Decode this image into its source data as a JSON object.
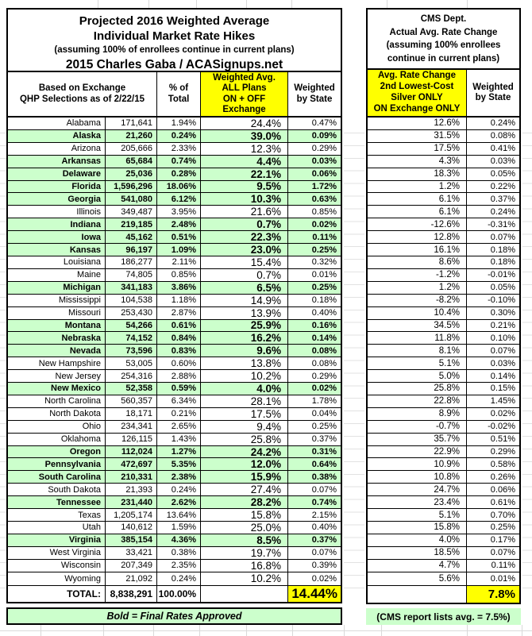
{
  "ui": {
    "left_table": {
      "title_lines": [
        "Projected 2016 Weighted Average",
        "Individual Market Rate Hikes",
        "(assuming 100% of enrollees continue in current plans)",
        "2015 Charles Gaba / ACASignups.net"
      ],
      "header": {
        "based_on": "Based on Exchange\nQHP Selections as of 2/22/15",
        "pct_total": "% of\nTotal",
        "weighted_avg": "Weighted Avg.\nALL Plans\nON + OFF\nExchange",
        "weighted_by_state": "Weighted\nby State"
      },
      "total_row": {
        "label": "TOTAL:",
        "enrollment": "8,838,291",
        "pct_total": "100.00%",
        "weighted_avg": "",
        "weighted_by_state": "14.44%"
      },
      "footer_note": "Bold = Final Rates Approved"
    },
    "right_table": {
      "title_lines_text": "CMS Dept.\nActual Avg. Rate Change\n(assuming 100% enrollees\ncontinue in current plans)",
      "header": {
        "rate_change": "Avg. Rate Change\n2nd Lowest-Cost\nSilver ONLY\nON Exchange ONLY",
        "weighted_by_state": "Weighted\nby State"
      },
      "total_row": {
        "rate_change": "",
        "weighted_by_state": "7.8%"
      },
      "footer_note": "(CMS report lists avg. = 7.5%)"
    },
    "colors": {
      "highlight_green": "#ccffcc",
      "highlight_yellow": "#ffff00",
      "border_black": "#000000",
      "grid_faint": "#d9d9d9"
    }
  },
  "chart_data": [
    {
      "type": "table",
      "title": "Projected 2016 Weighted Average Individual Market Rate Hikes (assuming 100% of enrollees continue in current plans) — 2015 Charles Gaba / ACASignups.net",
      "columns": [
        "State (Based on Exchange QHP Selections as of 2/22/15)",
        "QHP Selections",
        "% of Total",
        "Weighted Avg. ALL Plans ON + OFF Exchange",
        "Weighted by State"
      ],
      "legend": "final_approved=true rows are bold on green (Bold = Final Rates Approved)",
      "rows": [
        {
          "state": "Alabama",
          "enrollment": "171,641",
          "pct_total": "1.94%",
          "weighted_avg": "24.4%",
          "weighted_by_state": "0.47%",
          "final_approved": false
        },
        {
          "state": "Alaska",
          "enrollment": "21,260",
          "pct_total": "0.24%",
          "weighted_avg": "39.0%",
          "weighted_by_state": "0.09%",
          "final_approved": true
        },
        {
          "state": "Arizona",
          "enrollment": "205,666",
          "pct_total": "2.33%",
          "weighted_avg": "12.3%",
          "weighted_by_state": "0.29%",
          "final_approved": false
        },
        {
          "state": "Arkansas",
          "enrollment": "65,684",
          "pct_total": "0.74%",
          "weighted_avg": "4.4%",
          "weighted_by_state": "0.03%",
          "final_approved": true
        },
        {
          "state": "Delaware",
          "enrollment": "25,036",
          "pct_total": "0.28%",
          "weighted_avg": "22.1%",
          "weighted_by_state": "0.06%",
          "final_approved": true
        },
        {
          "state": "Florida",
          "enrollment": "1,596,296",
          "pct_total": "18.06%",
          "weighted_avg": "9.5%",
          "weighted_by_state": "1.72%",
          "final_approved": true
        },
        {
          "state": "Georgia",
          "enrollment": "541,080",
          "pct_total": "6.12%",
          "weighted_avg": "10.3%",
          "weighted_by_state": "0.63%",
          "final_approved": true
        },
        {
          "state": "Illinois",
          "enrollment": "349,487",
          "pct_total": "3.95%",
          "weighted_avg": "21.6%",
          "weighted_by_state": "0.85%",
          "final_approved": false
        },
        {
          "state": "Indiana",
          "enrollment": "219,185",
          "pct_total": "2.48%",
          "weighted_avg": "0.7%",
          "weighted_by_state": "0.02%",
          "final_approved": true
        },
        {
          "state": "Iowa",
          "enrollment": "45,162",
          "pct_total": "0.51%",
          "weighted_avg": "22.3%",
          "weighted_by_state": "0.11%",
          "final_approved": true
        },
        {
          "state": "Kansas",
          "enrollment": "96,197",
          "pct_total": "1.09%",
          "weighted_avg": "23.0%",
          "weighted_by_state": "0.25%",
          "final_approved": true
        },
        {
          "state": "Louisiana",
          "enrollment": "186,277",
          "pct_total": "2.11%",
          "weighted_avg": "15.4%",
          "weighted_by_state": "0.32%",
          "final_approved": false
        },
        {
          "state": "Maine",
          "enrollment": "74,805",
          "pct_total": "0.85%",
          "weighted_avg": "0.7%",
          "weighted_by_state": "0.01%",
          "final_approved": false
        },
        {
          "state": "Michigan",
          "enrollment": "341,183",
          "pct_total": "3.86%",
          "weighted_avg": "6.5%",
          "weighted_by_state": "0.25%",
          "final_approved": true
        },
        {
          "state": "Mississippi",
          "enrollment": "104,538",
          "pct_total": "1.18%",
          "weighted_avg": "14.9%",
          "weighted_by_state": "0.18%",
          "final_approved": false
        },
        {
          "state": "Missouri",
          "enrollment": "253,430",
          "pct_total": "2.87%",
          "weighted_avg": "13.9%",
          "weighted_by_state": "0.40%",
          "final_approved": false
        },
        {
          "state": "Montana",
          "enrollment": "54,266",
          "pct_total": "0.61%",
          "weighted_avg": "25.9%",
          "weighted_by_state": "0.16%",
          "final_approved": true
        },
        {
          "state": "Nebraska",
          "enrollment": "74,152",
          "pct_total": "0.84%",
          "weighted_avg": "16.2%",
          "weighted_by_state": "0.14%",
          "final_approved": true
        },
        {
          "state": "Nevada",
          "enrollment": "73,596",
          "pct_total": "0.83%",
          "weighted_avg": "9.6%",
          "weighted_by_state": "0.08%",
          "final_approved": true
        },
        {
          "state": "New Hampshire",
          "enrollment": "53,005",
          "pct_total": "0.60%",
          "weighted_avg": "13.8%",
          "weighted_by_state": "0.08%",
          "final_approved": false
        },
        {
          "state": "New Jersey",
          "enrollment": "254,316",
          "pct_total": "2.88%",
          "weighted_avg": "10.2%",
          "weighted_by_state": "0.29%",
          "final_approved": false
        },
        {
          "state": "New Mexico",
          "enrollment": "52,358",
          "pct_total": "0.59%",
          "weighted_avg": "4.0%",
          "weighted_by_state": "0.02%",
          "final_approved": true
        },
        {
          "state": "North Carolina",
          "enrollment": "560,357",
          "pct_total": "6.34%",
          "weighted_avg": "28.1%",
          "weighted_by_state": "1.78%",
          "final_approved": false
        },
        {
          "state": "North Dakota",
          "enrollment": "18,171",
          "pct_total": "0.21%",
          "weighted_avg": "17.5%",
          "weighted_by_state": "0.04%",
          "final_approved": false
        },
        {
          "state": "Ohio",
          "enrollment": "234,341",
          "pct_total": "2.65%",
          "weighted_avg": "9.4%",
          "weighted_by_state": "0.25%",
          "final_approved": false
        },
        {
          "state": "Oklahoma",
          "enrollment": "126,115",
          "pct_total": "1.43%",
          "weighted_avg": "25.8%",
          "weighted_by_state": "0.37%",
          "final_approved": false
        },
        {
          "state": "Oregon",
          "enrollment": "112,024",
          "pct_total": "1.27%",
          "weighted_avg": "24.2%",
          "weighted_by_state": "0.31%",
          "final_approved": true
        },
        {
          "state": "Pennsylvania",
          "enrollment": "472,697",
          "pct_total": "5.35%",
          "weighted_avg": "12.0%",
          "weighted_by_state": "0.64%",
          "final_approved": true
        },
        {
          "state": "South Carolina",
          "enrollment": "210,331",
          "pct_total": "2.38%",
          "weighted_avg": "15.9%",
          "weighted_by_state": "0.38%",
          "final_approved": true
        },
        {
          "state": "South Dakota",
          "enrollment": "21,393",
          "pct_total": "0.24%",
          "weighted_avg": "27.4%",
          "weighted_by_state": "0.07%",
          "final_approved": false
        },
        {
          "state": "Tennessee",
          "enrollment": "231,440",
          "pct_total": "2.62%",
          "weighted_avg": "28.2%",
          "weighted_by_state": "0.74%",
          "final_approved": true
        },
        {
          "state": "Texas",
          "enrollment": "1,205,174",
          "pct_total": "13.64%",
          "weighted_avg": "15.8%",
          "weighted_by_state": "2.15%",
          "final_approved": false
        },
        {
          "state": "Utah",
          "enrollment": "140,612",
          "pct_total": "1.59%",
          "weighted_avg": "25.0%",
          "weighted_by_state": "0.40%",
          "final_approved": false
        },
        {
          "state": "Virginia",
          "enrollment": "385,154",
          "pct_total": "4.36%",
          "weighted_avg": "8.5%",
          "weighted_by_state": "0.37%",
          "final_approved": true
        },
        {
          "state": "West Virginia",
          "enrollment": "33,421",
          "pct_total": "0.38%",
          "weighted_avg": "19.7%",
          "weighted_by_state": "0.07%",
          "final_approved": false
        },
        {
          "state": "Wisconsin",
          "enrollment": "207,349",
          "pct_total": "2.35%",
          "weighted_avg": "16.8%",
          "weighted_by_state": "0.39%",
          "final_approved": false
        },
        {
          "state": "Wyoming",
          "enrollment": "21,092",
          "pct_total": "0.24%",
          "weighted_avg": "10.2%",
          "weighted_by_state": "0.02%",
          "final_approved": false
        }
      ],
      "total": {
        "label": "TOTAL:",
        "enrollment": "8,838,291",
        "pct_total": "100.00%",
        "weighted_avg": "",
        "weighted_by_state": "14.44%"
      }
    },
    {
      "type": "table",
      "title": "CMS Dept. Actual Avg. Rate Change (assuming 100% enrollees continue in current plans)",
      "columns": [
        "Avg. Rate Change 2nd Lowest-Cost Silver ONLY ON Exchange ONLY",
        "Weighted by State"
      ],
      "rows": [
        {
          "rate_change": "12.6%",
          "weighted_by_state": "0.24%"
        },
        {
          "rate_change": "31.5%",
          "weighted_by_state": "0.08%"
        },
        {
          "rate_change": "17.5%",
          "weighted_by_state": "0.41%"
        },
        {
          "rate_change": "4.3%",
          "weighted_by_state": "0.03%"
        },
        {
          "rate_change": "18.3%",
          "weighted_by_state": "0.05%"
        },
        {
          "rate_change": "1.2%",
          "weighted_by_state": "0.22%"
        },
        {
          "rate_change": "6.1%",
          "weighted_by_state": "0.37%"
        },
        {
          "rate_change": "6.1%",
          "weighted_by_state": "0.24%"
        },
        {
          "rate_change": "-12.6%",
          "weighted_by_state": "-0.31%"
        },
        {
          "rate_change": "12.8%",
          "weighted_by_state": "0.07%"
        },
        {
          "rate_change": "16.1%",
          "weighted_by_state": "0.18%"
        },
        {
          "rate_change": "8.6%",
          "weighted_by_state": "0.18%"
        },
        {
          "rate_change": "-1.2%",
          "weighted_by_state": "-0.01%"
        },
        {
          "rate_change": "1.2%",
          "weighted_by_state": "0.05%"
        },
        {
          "rate_change": "-8.2%",
          "weighted_by_state": "-0.10%"
        },
        {
          "rate_change": "10.4%",
          "weighted_by_state": "0.30%"
        },
        {
          "rate_change": "34.5%",
          "weighted_by_state": "0.21%"
        },
        {
          "rate_change": "11.8%",
          "weighted_by_state": "0.10%"
        },
        {
          "rate_change": "8.1%",
          "weighted_by_state": "0.07%"
        },
        {
          "rate_change": "5.1%",
          "weighted_by_state": "0.03%"
        },
        {
          "rate_change": "5.0%",
          "weighted_by_state": "0.14%"
        },
        {
          "rate_change": "25.8%",
          "weighted_by_state": "0.15%"
        },
        {
          "rate_change": "22.8%",
          "weighted_by_state": "1.45%"
        },
        {
          "rate_change": "8.9%",
          "weighted_by_state": "0.02%"
        },
        {
          "rate_change": "-0.7%",
          "weighted_by_state": "-0.02%"
        },
        {
          "rate_change": "35.7%",
          "weighted_by_state": "0.51%"
        },
        {
          "rate_change": "22.9%",
          "weighted_by_state": "0.29%"
        },
        {
          "rate_change": "10.9%",
          "weighted_by_state": "0.58%"
        },
        {
          "rate_change": "10.8%",
          "weighted_by_state": "0.26%"
        },
        {
          "rate_change": "24.7%",
          "weighted_by_state": "0.06%"
        },
        {
          "rate_change": "23.4%",
          "weighted_by_state": "0.61%"
        },
        {
          "rate_change": "5.1%",
          "weighted_by_state": "0.70%"
        },
        {
          "rate_change": "15.8%",
          "weighted_by_state": "0.25%"
        },
        {
          "rate_change": "4.0%",
          "weighted_by_state": "0.17%"
        },
        {
          "rate_change": "18.5%",
          "weighted_by_state": "0.07%"
        },
        {
          "rate_change": "4.7%",
          "weighted_by_state": "0.11%"
        },
        {
          "rate_change": "5.6%",
          "weighted_by_state": "0.01%"
        }
      ],
      "total": {
        "rate_change": "",
        "weighted_by_state": "7.8%"
      }
    }
  ]
}
